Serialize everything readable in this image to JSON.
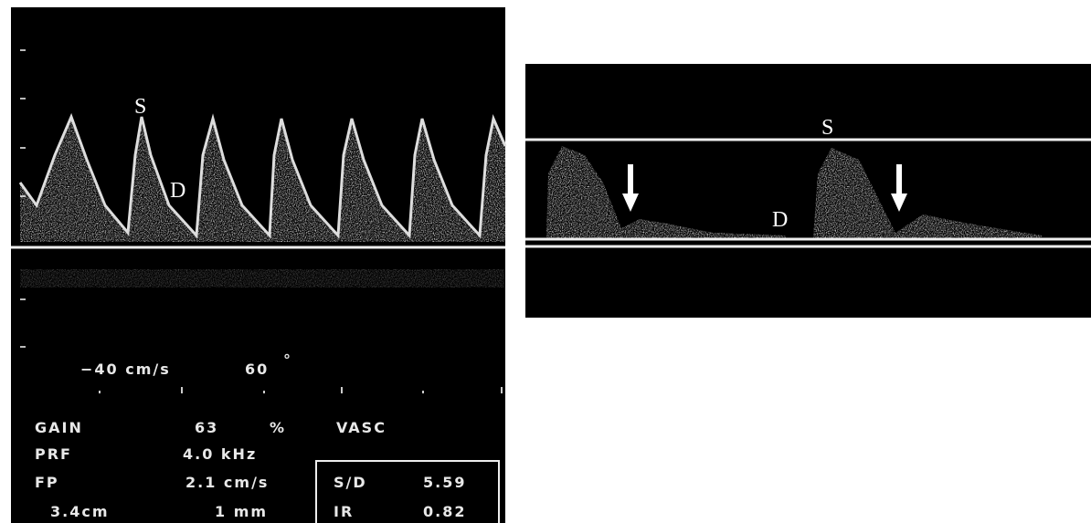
{
  "left_panel": {
    "peak_label": "S",
    "dip_label": "D",
    "scale": "−40 cm/s",
    "angle": "60",
    "angle_unit": "°",
    "rows": [
      [
        "GAIN",
        "63",
        "%",
        "VASC"
      ],
      [
        "PRF",
        "4.0 kHz"
      ],
      [
        "FP",
        "2.1 cm/s"
      ],
      [
        "3.4cm",
        "1 mm"
      ]
    ],
    "indices": [
      [
        "S/D",
        "5.59"
      ],
      [
        "IR",
        "0.82"
      ]
    ]
  },
  "right_panel": {
    "peak_label": "S",
    "dip_label": "D"
  }
}
